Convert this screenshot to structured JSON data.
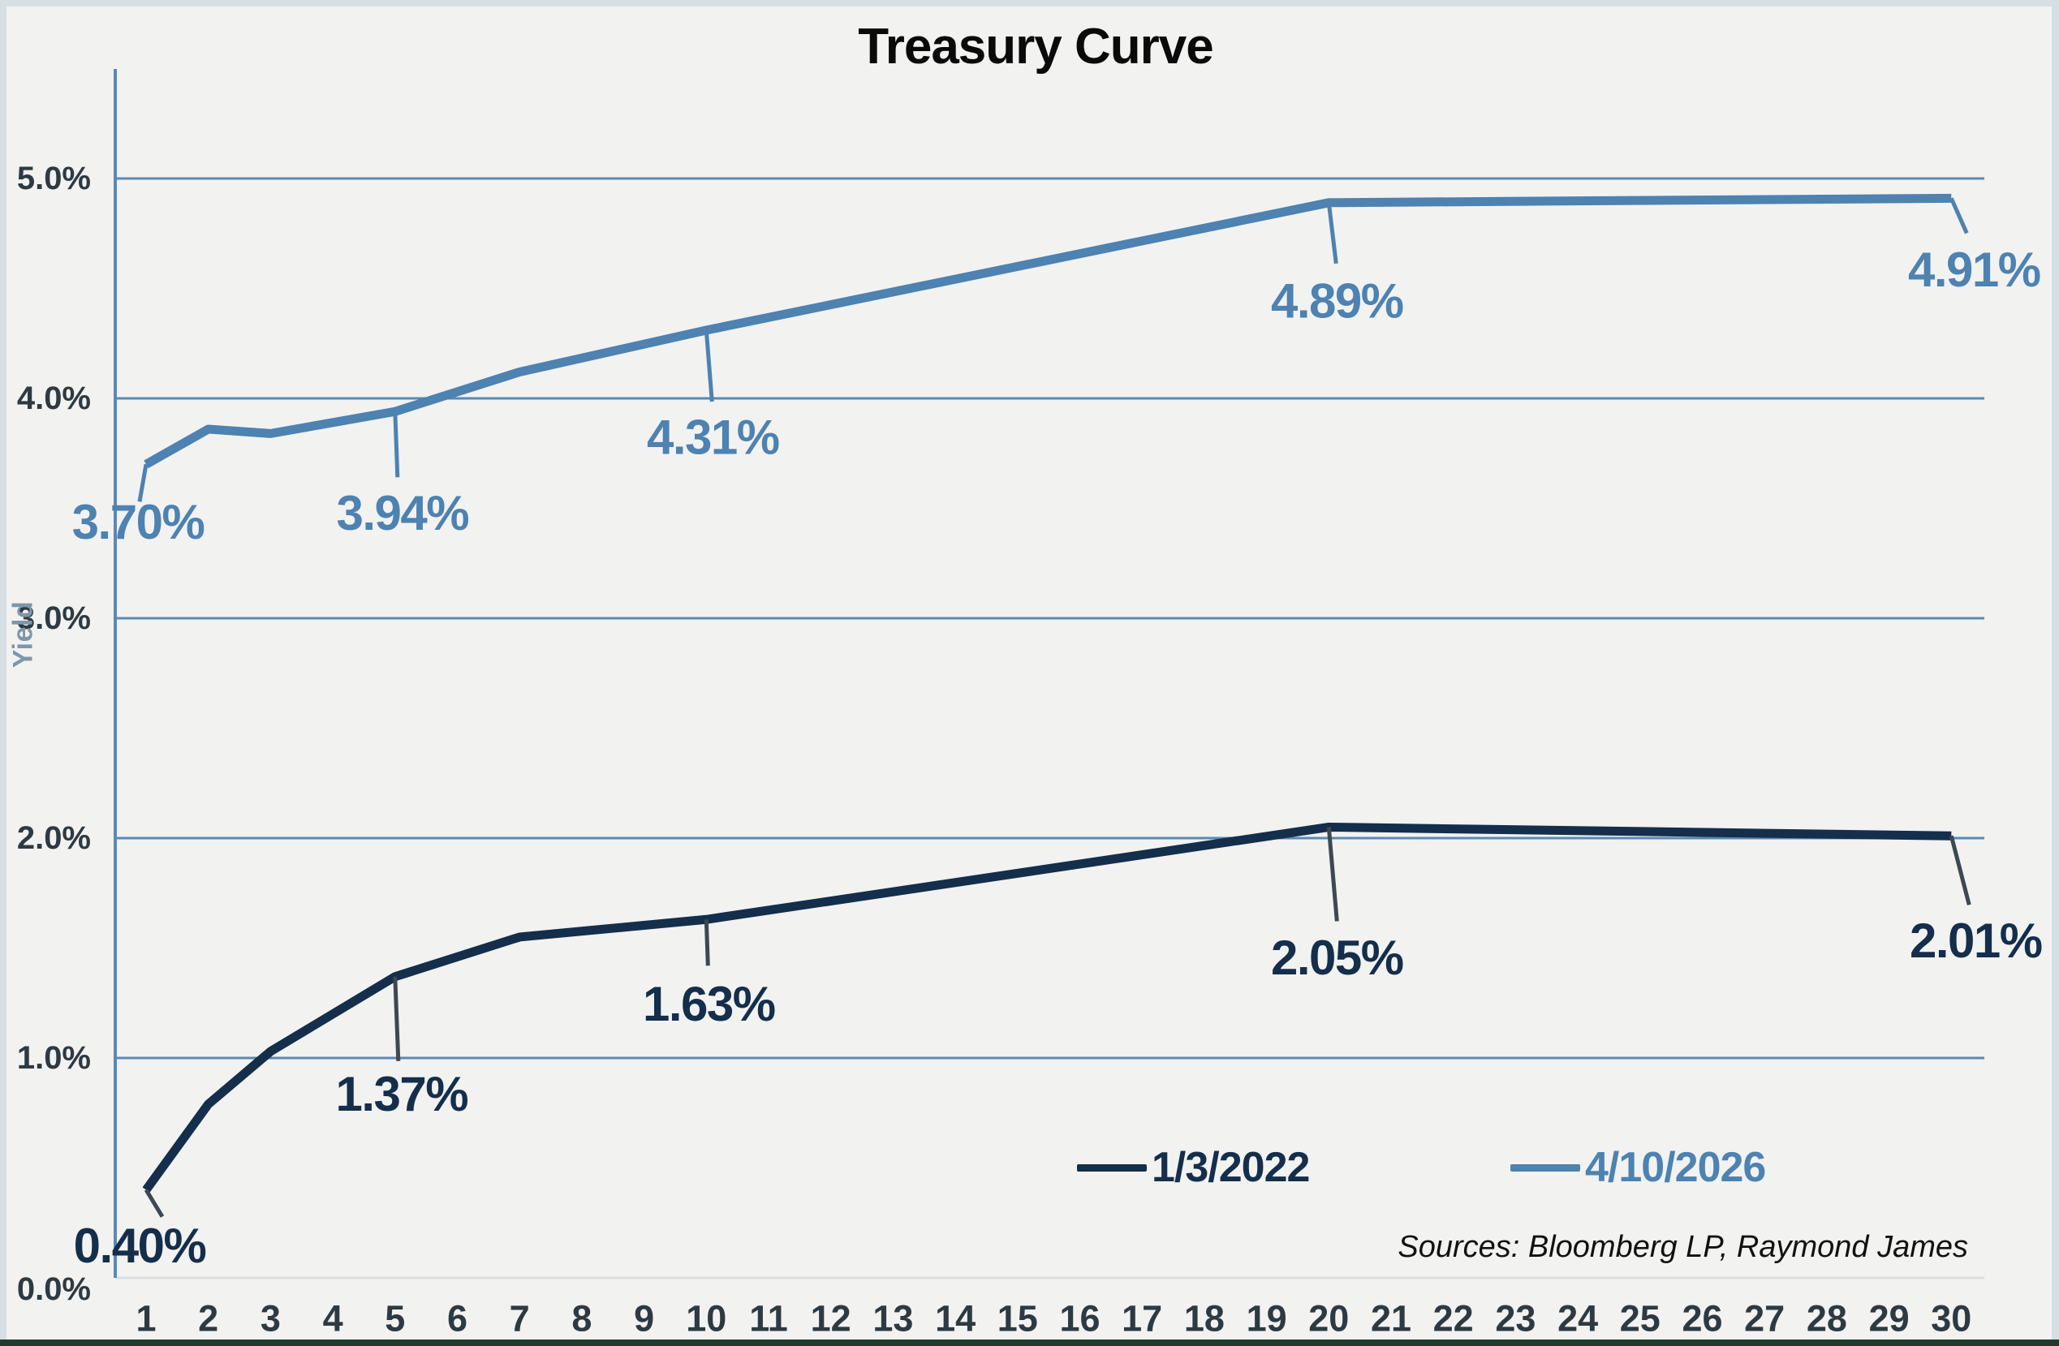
{
  "title": "Treasury Curve",
  "y_axis": {
    "title": "Yield",
    "ticks": [
      {
        "label": "5.0%",
        "value": 5.0
      },
      {
        "label": "4.0%",
        "value": 4.0
      },
      {
        "label": "3.0%",
        "value": 3.0
      },
      {
        "label": "2.0%",
        "value": 2.0
      },
      {
        "label": "1.0%",
        "value": 1.0
      },
      {
        "label": "0.0%",
        "value": 0.0
      }
    ]
  },
  "x_axis": {
    "ticks": [
      1,
      2,
      3,
      4,
      5,
      6,
      7,
      8,
      9,
      10,
      11,
      12,
      13,
      14,
      15,
      16,
      17,
      18,
      19,
      20,
      21,
      22,
      23,
      24,
      25,
      26,
      27,
      28,
      29,
      30
    ]
  },
  "legend": [
    {
      "label": "1/3/2022",
      "color": "#142e4b"
    },
    {
      "label": "4/10/2026",
      "color": "#4d82b1"
    }
  ],
  "source_note": "Sources: Bloomberg LP, Raymond James",
  "colors": {
    "background": "#f2f2f1",
    "frame_light": "#d6dfe4",
    "frame_bottom_dark": "#203a30",
    "gridline_blue": "#5b89b4",
    "zero_axis_line": "#d8dde1",
    "tick_text": "#2d3a42",
    "dark_series": "#142e4b",
    "blue_series": "#4d82b1",
    "dark_leader": "#3d4852"
  },
  "chart_data": {
    "type": "line",
    "title": "Treasury Curve",
    "xlabel": "",
    "ylabel": "Yield",
    "ylim": [
      0,
      5.5
    ],
    "grid": "horizontal",
    "legend_position": "inside-bottom-right",
    "x_ticks": [
      1,
      2,
      3,
      4,
      5,
      6,
      7,
      8,
      9,
      10,
      11,
      12,
      13,
      14,
      15,
      16,
      17,
      18,
      19,
      20,
      21,
      22,
      23,
      24,
      25,
      26,
      27,
      28,
      29,
      30
    ],
    "series": [
      {
        "name": "1/3/2022",
        "color": "#142e4b",
        "points": [
          {
            "x": 1,
            "y": 0.4
          },
          {
            "x": 2,
            "y": 0.79
          },
          {
            "x": 3,
            "y": 1.03
          },
          {
            "x": 5,
            "y": 1.37
          },
          {
            "x": 7,
            "y": 1.55
          },
          {
            "x": 10,
            "y": 1.63
          },
          {
            "x": 20,
            "y": 2.05
          },
          {
            "x": 30,
            "y": 2.01
          }
        ],
        "labeled_points": [
          {
            "x": 1,
            "label": "0.40%"
          },
          {
            "x": 5,
            "label": "1.37%"
          },
          {
            "x": 10,
            "label": "1.63%"
          },
          {
            "x": 20,
            "label": "2.05%"
          },
          {
            "x": 30,
            "label": "2.01%"
          }
        ]
      },
      {
        "name": "4/10/2026",
        "color": "#4d82b1",
        "points": [
          {
            "x": 1,
            "y": 3.7
          },
          {
            "x": 2,
            "y": 3.86
          },
          {
            "x": 3,
            "y": 3.84
          },
          {
            "x": 5,
            "y": 3.94
          },
          {
            "x": 7,
            "y": 4.12
          },
          {
            "x": 10,
            "y": 4.31
          },
          {
            "x": 20,
            "y": 4.89
          },
          {
            "x": 30,
            "y": 4.91
          }
        ],
        "labeled_points": [
          {
            "x": 1,
            "label": "3.70%"
          },
          {
            "x": 5,
            "label": "3.94%"
          },
          {
            "x": 10,
            "label": "4.31%"
          },
          {
            "x": 20,
            "label": "4.89%"
          },
          {
            "x": 30,
            "label": "4.91%"
          }
        ]
      }
    ]
  }
}
